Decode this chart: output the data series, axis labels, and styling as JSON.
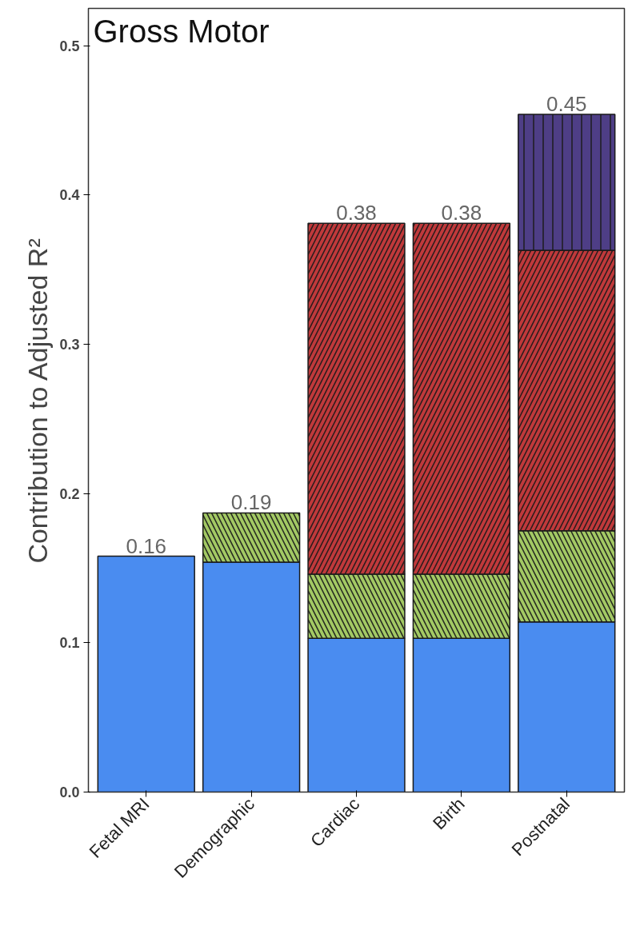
{
  "chart_data": {
    "type": "bar",
    "title": "Gross Motor",
    "ylabel": "Contribution to Adjusted R²",
    "stacked": true,
    "categories": [
      "Fetal MRI",
      "Demographic",
      "Cardiac",
      "Birth",
      "Postnatal"
    ],
    "series": [
      {
        "color": "#4a8cf0",
        "values": [
          0.158,
          0.154,
          0.103,
          0.103,
          0.114
        ]
      },
      {
        "color": "#a3c964",
        "values": [
          null,
          0.033,
          0.043,
          0.043,
          0.061
        ]
      },
      {
        "color": "#c0393b",
        "values": [
          null,
          null,
          0.235,
          0.235,
          0.188
        ]
      },
      {
        "color": "#4e3e86",
        "values": [
          null,
          null,
          null,
          null,
          0.091
        ]
      }
    ],
    "totals": [
      "0.16",
      "0.19",
      "0.38",
      "0.38",
      "0.45"
    ],
    "ylim": [
      0,
      0.525
    ],
    "yticks": [
      {
        "value": 0,
        "label": "0.0"
      },
      0.1,
      0.2,
      0.3,
      0.4,
      0.5
    ],
    "grid": false
  }
}
